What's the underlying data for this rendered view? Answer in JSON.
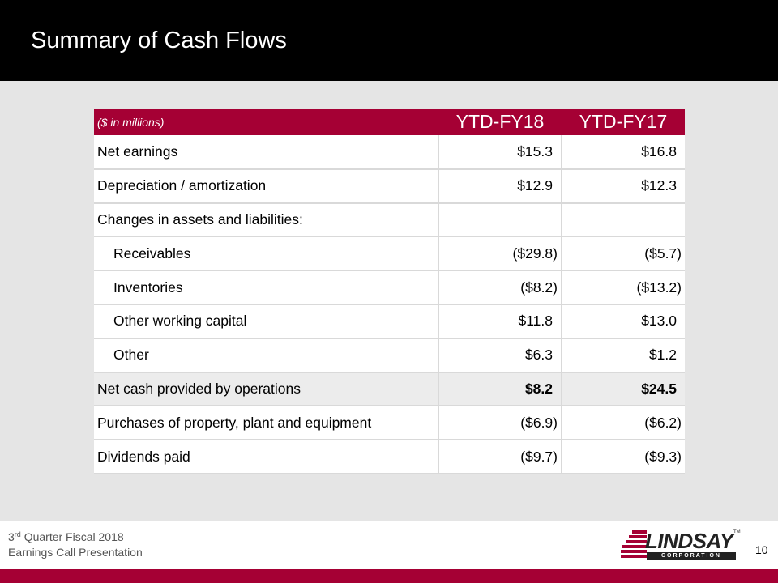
{
  "slide": {
    "title": "Summary of Cash Flows"
  },
  "table": {
    "unit_label": "($ in millions)",
    "columns": [
      "YTD-FY18",
      "YTD-FY17"
    ],
    "rows": [
      {
        "label": "Net earnings",
        "fy18": "$15.3",
        "fy17": "$16.8"
      },
      {
        "label": "Depreciation / amortization",
        "fy18": "$12.9",
        "fy17": "$12.3"
      },
      {
        "label": "Changes in assets and liabilities:",
        "fy18": "",
        "fy17": ""
      },
      {
        "label": "Receivables",
        "fy18": "($29.8)",
        "fy17": "($5.7)"
      },
      {
        "label": "Inventories",
        "fy18": "($8.2)",
        "fy17": "($13.2)"
      },
      {
        "label": "Other working capital",
        "fy18": "$11.8",
        "fy17": "$13.0"
      },
      {
        "label": "Other",
        "fy18": "$6.3",
        "fy17": "$1.2"
      },
      {
        "label": "Net cash provided by operations",
        "fy18": "$8.2",
        "fy17": "$24.5"
      },
      {
        "label": "Purchases of property, plant and equipment",
        "fy18": "($6.9)",
        "fy17": "($6.2)"
      },
      {
        "label": "Dividends paid",
        "fy18": "($9.7)",
        "fy17": "($9.3)"
      }
    ]
  },
  "footer": {
    "line1_prefix": "3",
    "line1_sup": "rd",
    "line1_suffix": " Quarter Fiscal 2018",
    "line2": "Earnings Call Presentation",
    "logo_word": "LINDSAY",
    "logo_tm": "TM",
    "logo_sub": "CORPORATION",
    "page_number": "10"
  },
  "colors": {
    "accent": "#a50034",
    "header": "#000000",
    "background": "#e5e5e5"
  }
}
